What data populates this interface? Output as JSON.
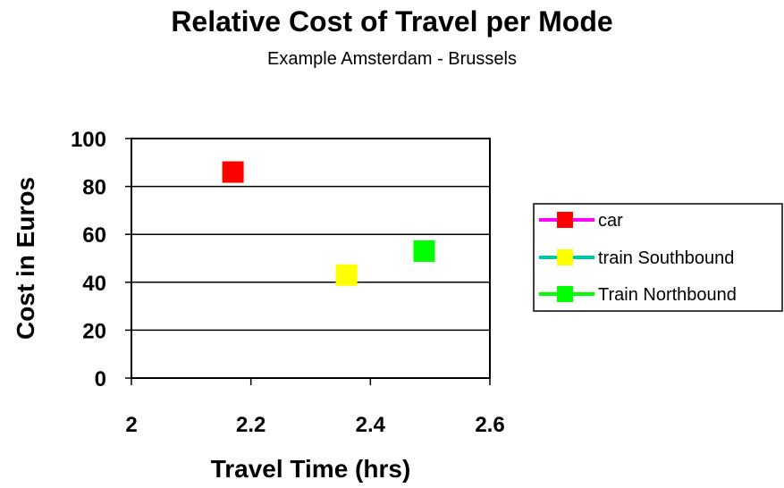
{
  "chart_data": {
    "type": "scatter",
    "title": "Relative Cost of Travel per Mode",
    "subtitle": "Example Amsterdam - Brussels",
    "xlabel": "Travel Time (hrs)",
    "ylabel": "Cost in Euros",
    "xlim": [
      2,
      2.6
    ],
    "ylim": [
      0,
      100
    ],
    "x_ticks": [
      2,
      2.2,
      2.4,
      2.6
    ],
    "x_tick_labels": [
      "2",
      "2.2",
      "2.4",
      "2.6"
    ],
    "y_ticks": [
      0,
      20,
      40,
      60,
      80,
      100
    ],
    "y_tick_labels": [
      "0",
      "20",
      "40",
      "60",
      "80",
      "100"
    ],
    "grid": "horizontal",
    "legend_position": "right",
    "series": [
      {
        "name": "car",
        "x": [
          2.17
        ],
        "y": [
          86
        ],
        "marker_color": "#ff0000",
        "line_color": "#ff00ff"
      },
      {
        "name": "train Southbound",
        "x": [
          2.36
        ],
        "y": [
          43
        ],
        "marker_color": "#ffff00",
        "line_color": "#00c8a0"
      },
      {
        "name": "Train Northbound",
        "x": [
          2.49
        ],
        "y": [
          53
        ],
        "marker_color": "#00ff00",
        "line_color": "#00ff00"
      }
    ]
  }
}
